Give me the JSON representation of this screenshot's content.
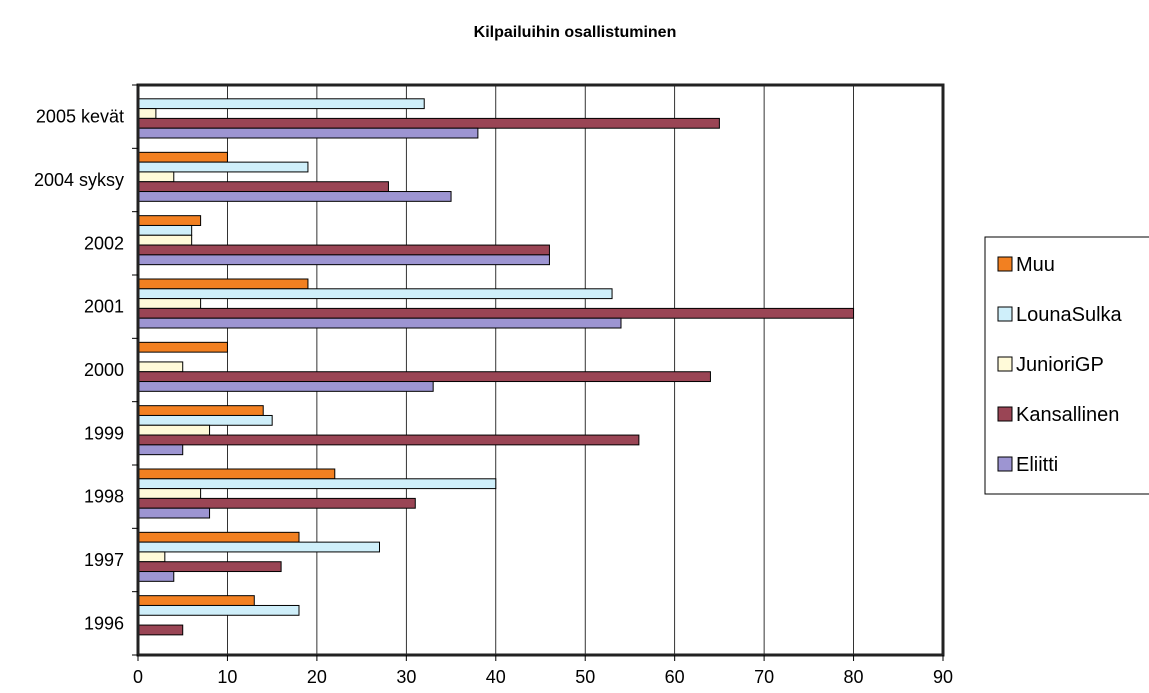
{
  "chart_data": {
    "type": "bar",
    "orientation": "horizontal",
    "title": "Kilpailuihin osallistuminen",
    "xlabel": "",
    "ylabel": "",
    "xlim": [
      0,
      90
    ],
    "x_ticks": [
      0,
      10,
      20,
      30,
      40,
      50,
      60,
      70,
      80,
      90
    ],
    "grid": "vertical",
    "legend_position": "right",
    "categories": [
      "1996",
      "1997",
      "1998",
      "1999",
      "2000",
      "2001",
      "2002",
      "2004 syksy",
      "2005 kevät"
    ],
    "series": [
      {
        "name": "Muu",
        "color": "#F28021",
        "values": [
          13,
          18,
          22,
          14,
          10,
          19,
          7,
          10,
          0
        ]
      },
      {
        "name": "LounaSulka",
        "color": "#CFEFFA",
        "values": [
          18,
          27,
          40,
          15,
          0,
          53,
          6,
          19,
          32
        ]
      },
      {
        "name": "JunioriGP",
        "color": "#FFFAD9",
        "values": [
          0,
          3,
          7,
          8,
          5,
          7,
          6,
          4,
          2
        ]
      },
      {
        "name": "Kansallinen",
        "color": "#9A4555",
        "values": [
          5,
          16,
          31,
          56,
          64,
          80,
          46,
          28,
          65
        ]
      },
      {
        "name": "Eliitti",
        "color": "#9D95D2",
        "values": [
          0,
          4,
          8,
          5,
          33,
          54,
          46,
          35,
          38
        ]
      }
    ]
  }
}
